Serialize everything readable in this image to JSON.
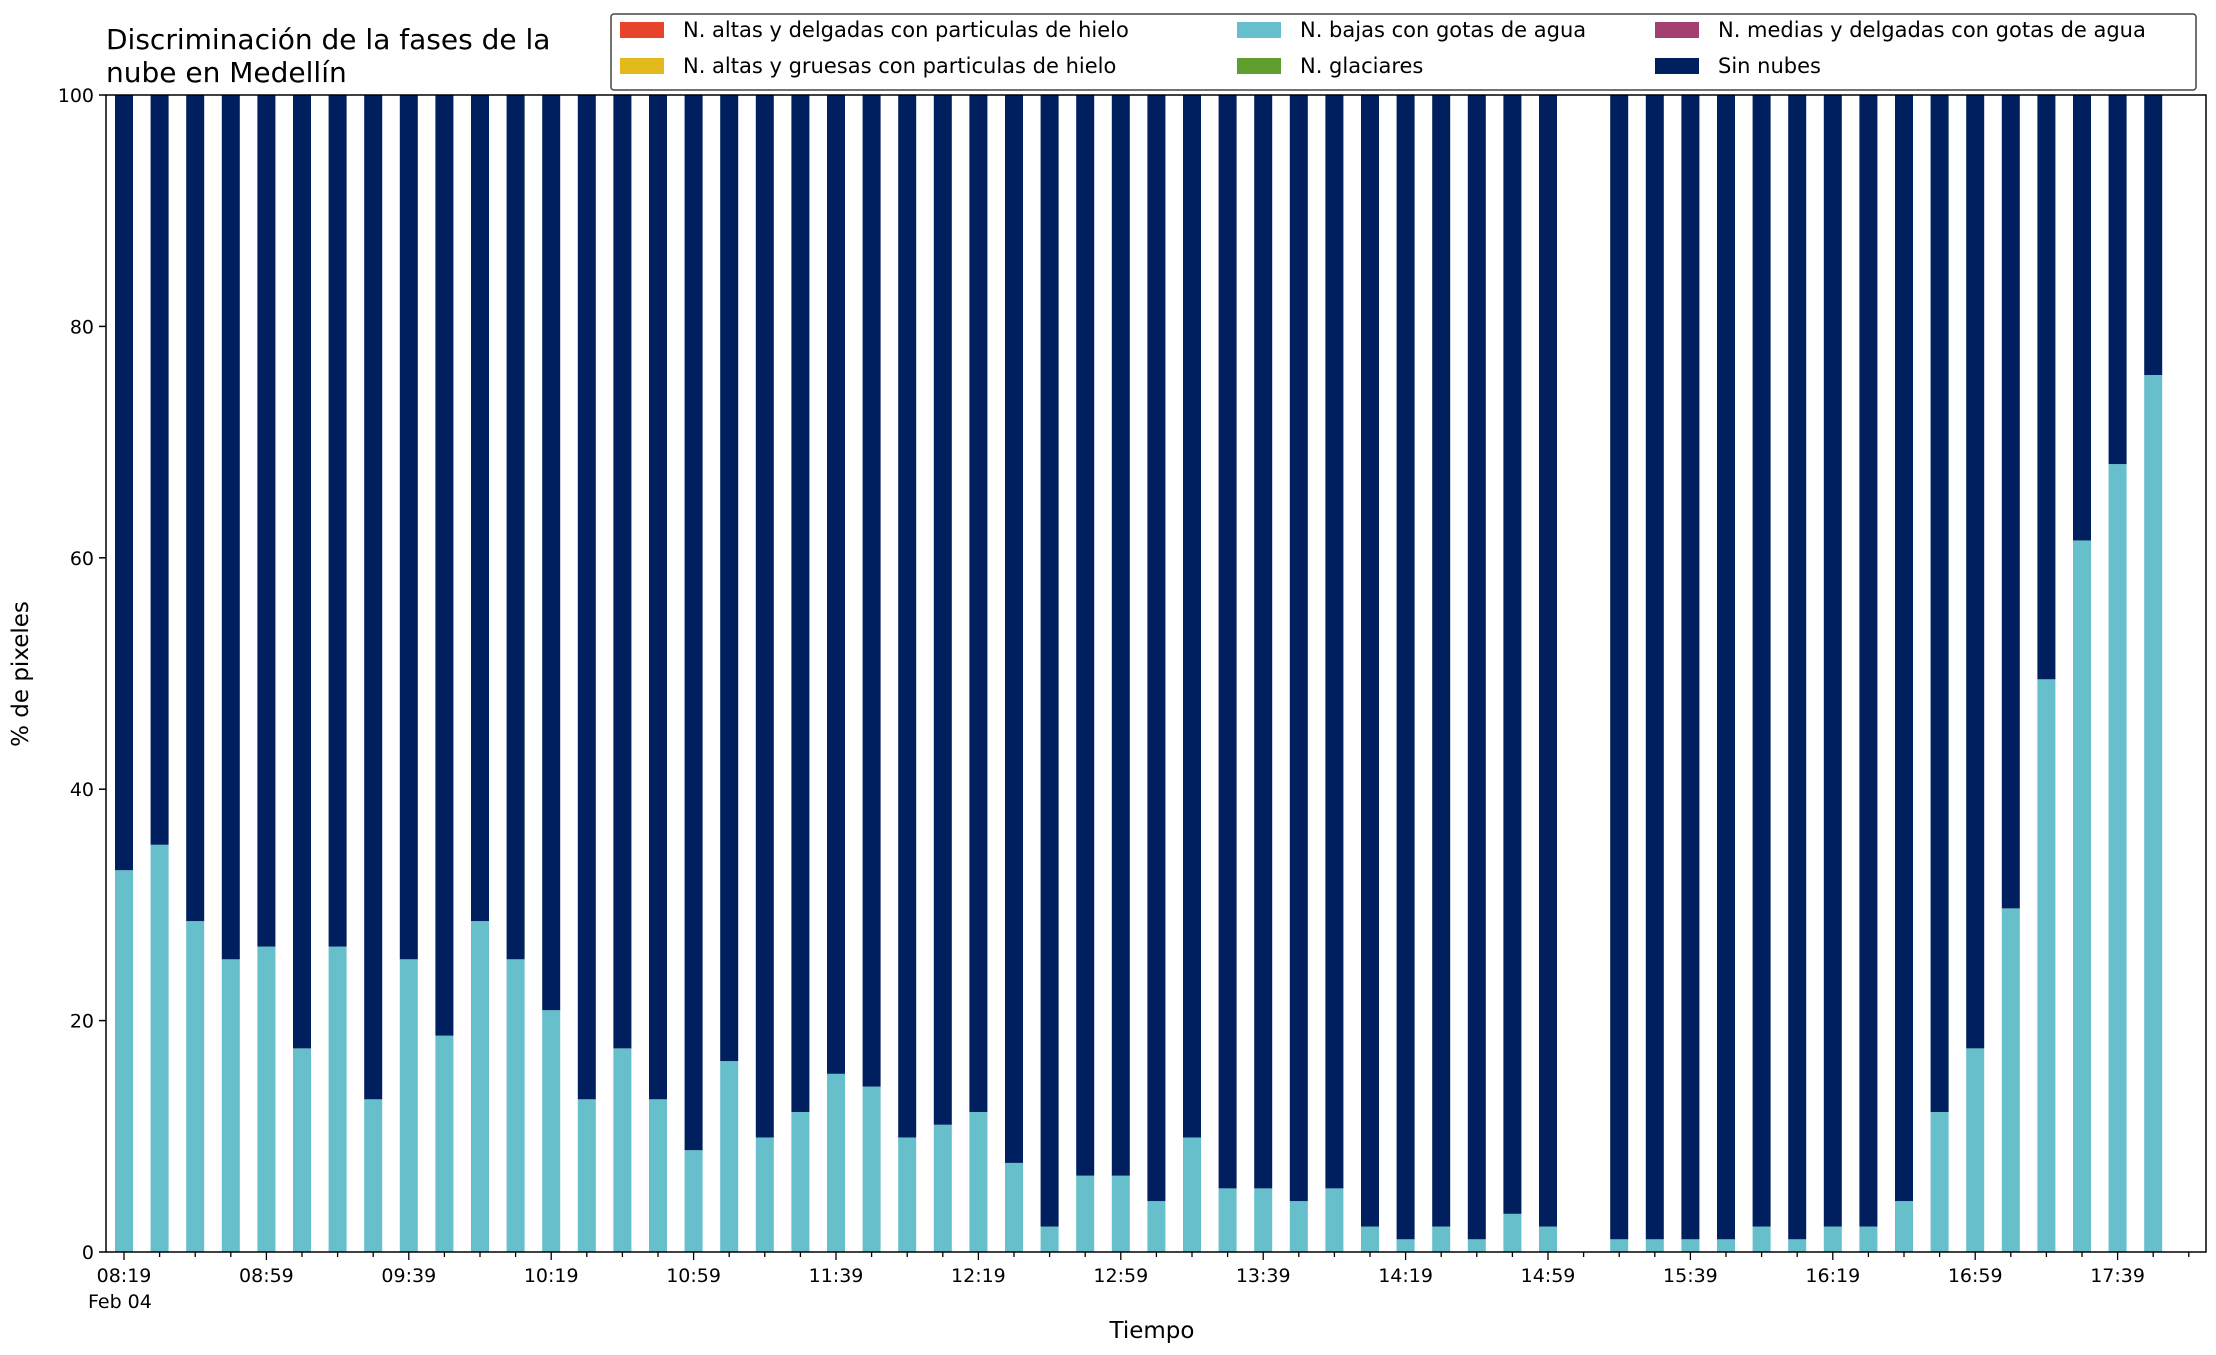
{
  "chart_data": {
    "type": "bar",
    "stacked": true,
    "title": "Discriminación de la fases de la nube en Medellín",
    "title_lines": [
      "Discriminación de la fases de la",
      "nube en Medellín"
    ],
    "xlabel": "Tiempo",
    "ylabel": "% de pixeles",
    "ylim": [
      0,
      100
    ],
    "yticks": [
      0,
      20,
      40,
      60,
      80,
      100
    ],
    "x_start": "08:19",
    "x_interval_minutes": 10,
    "x_tick_labels": [
      "08:19",
      "08:59",
      "09:39",
      "10:19",
      "10:59",
      "11:39",
      "12:19",
      "12:59",
      "13:39",
      "14:19",
      "14:59",
      "15:39",
      "16:19",
      "16:59",
      "17:39"
    ],
    "x_date_label": "Feb 04",
    "legend_position": "top-right",
    "legend": [
      {
        "name": "N. altas y delgadas con particulas de hielo",
        "color": "#e8432b"
      },
      {
        "name": "N. altas y gruesas con particulas de hielo",
        "color": "#e4b91e"
      },
      {
        "name": "N. bajas con gotas de agua",
        "color": "#66bfcb"
      },
      {
        "name": "N. glaciares",
        "color": "#5e9e2e"
      },
      {
        "name": "N. medias y delgadas con gotas de agua",
        "color": "#a3406f"
      },
      {
        "name": "Sin nubes",
        "color": "#001f5e"
      }
    ],
    "series": [
      {
        "name": "N. bajas con gotas de agua",
        "color": "#66bfcb",
        "values": [
          33,
          35.2,
          28.6,
          25.3,
          26.4,
          17.6,
          26.4,
          13.2,
          25.3,
          18.7,
          28.6,
          25.3,
          20.9,
          13.2,
          17.6,
          13.2,
          8.8,
          16.5,
          9.9,
          12.1,
          15.4,
          14.3,
          9.9,
          11,
          12.1,
          7.7,
          2.2,
          6.6,
          6.6,
          4.4,
          9.9,
          5.5,
          5.5,
          4.4,
          5.5,
          2.2,
          1.1,
          2.2,
          1.1,
          3.3,
          2.2,
          null,
          1.1,
          1.1,
          1.1,
          1.1,
          2.2,
          1.1,
          2.2,
          2.2,
          4.4,
          12.1,
          17.6,
          29.7,
          49.5,
          61.5,
          68.1,
          75.8
        ]
      },
      {
        "name": "Sin nubes",
        "color": "#001f5e",
        "values": [
          67,
          64.8,
          71.4,
          74.7,
          73.6,
          82.4,
          73.6,
          86.8,
          74.7,
          81.3,
          71.4,
          74.7,
          79.1,
          86.8,
          82.4,
          86.8,
          91.2,
          83.5,
          90.1,
          87.9,
          84.6,
          85.7,
          90.1,
          89,
          87.9,
          92.3,
          97.8,
          93.4,
          93.4,
          95.6,
          90.1,
          94.5,
          94.5,
          95.6,
          94.5,
          97.8,
          98.9,
          97.8,
          98.9,
          96.7,
          97.8,
          null,
          98.9,
          98.9,
          98.9,
          98.9,
          97.8,
          98.9,
          97.8,
          97.8,
          95.6,
          87.9,
          82.4,
          70.3,
          50.5,
          38.5,
          31.9,
          24.2
        ]
      }
    ]
  }
}
